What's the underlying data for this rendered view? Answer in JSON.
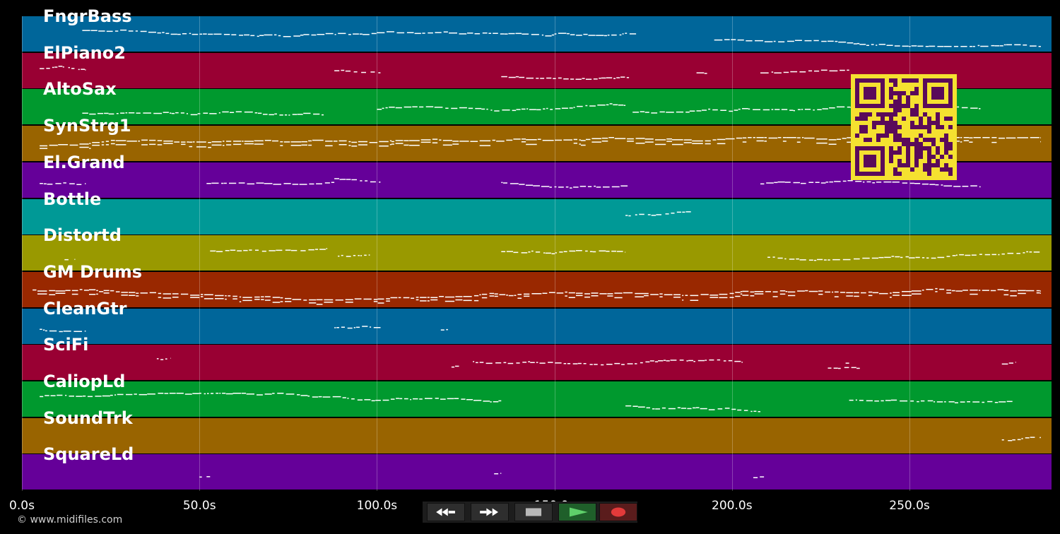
{
  "tracks": [
    {
      "name": "FngrBass",
      "color": "#00669a"
    },
    {
      "name": "ElPiano2",
      "color": "#990033"
    },
    {
      "name": "AltoSax",
      "color": "#00992e"
    },
    {
      "name": "SynStrg1",
      "color": "#996400"
    },
    {
      "name": "El.Grand",
      "color": "#650099"
    },
    {
      "name": "Bottle",
      "color": "#009996"
    },
    {
      "name": "Distortd",
      "color": "#999900"
    },
    {
      "name": "GM Drums",
      "color": "#992800"
    },
    {
      "name": "CleanGtr",
      "color": "#00669a"
    },
    {
      "name": "SciFi",
      "color": "#990033"
    },
    {
      "name": "CaliopLd",
      "color": "#00992e"
    },
    {
      "name": "SoundTrk",
      "color": "#996400"
    },
    {
      "name": "SquareLd",
      "color": "#650099"
    }
  ],
  "timeline": {
    "max_seconds": 290,
    "ticks": [
      {
        "value": 0,
        "label": "0.0s"
      },
      {
        "value": 50,
        "label": "50.0s"
      },
      {
        "value": 100,
        "label": "100.0s"
      },
      {
        "value": 150,
        "label": "150.0s"
      },
      {
        "value": 200,
        "label": "200.0s"
      },
      {
        "value": 250,
        "label": "250.0s"
      }
    ]
  },
  "copyright": "© www.midifiles.com",
  "transport": {
    "buttons": [
      {
        "name": "rewind-button",
        "icon": "rewind-icon"
      },
      {
        "name": "fast-forward-button",
        "icon": "fast-forward-icon"
      },
      {
        "name": "stop-button",
        "icon": "stop-icon"
      },
      {
        "name": "play-button",
        "icon": "play-icon"
      },
      {
        "name": "record-button",
        "icon": "record-icon"
      }
    ]
  },
  "qr_code": {
    "icon": "qr-code-icon",
    "colors": {
      "fg": "#5a0a5a",
      "bg": "#f5e130"
    }
  }
}
